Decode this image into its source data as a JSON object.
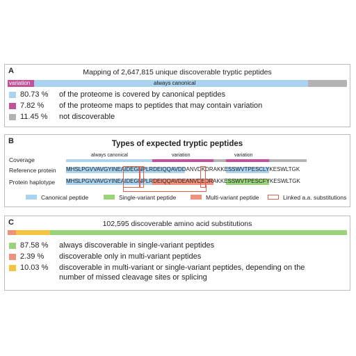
{
  "panelA": {
    "label": "A",
    "title": "Mapping of 2,647,815 unique discoverable tryptic peptides",
    "bar": {
      "variation_label": "variation",
      "canonical_label": "always canonical",
      "segments": [
        {
          "name": "variation",
          "fraction": 0.0782,
          "color": "#c2509a"
        },
        {
          "name": "canonical",
          "fraction": 0.8073,
          "color": "#a9d3ef"
        },
        {
          "name": "not",
          "fraction": 0.1145,
          "color": "#b2b2b2"
        }
      ]
    },
    "legend": [
      {
        "pct": "80.73 %",
        "text": "of the proteome is covered by canonical peptides",
        "color": "#a9d3ef"
      },
      {
        "pct": "7.82 %",
        "text": "of the proteome maps to peptides that may contain variation",
        "color": "#c2509a"
      },
      {
        "pct": "11.45 %",
        "text": "not discoverable",
        "color": "#b2b2b2"
      }
    ]
  },
  "panelB": {
    "label": "B",
    "title": "Types of expected tryptic peptides",
    "coverage_label": "Coverage",
    "coverage_always": "always canonical",
    "coverage_var1": "variation",
    "coverage_var2": "variation",
    "reference_label": "Reference protein",
    "haplotype_label": "Protein haplotype",
    "reference_seq": "MHSLPGVVAVGYINEAIDEGNPLRDEIQQAVDDANVDKDRAKKESSWVTPESCLYKESWLTGK",
    "haplotype_seq": "MHSLPGVVAVGYINEAIDEGNPLRDEIQQAVDEANVDEDRAKKESSWVTPESCFYKESWLTGK",
    "legend": [
      {
        "text": "Canonical peptide",
        "color": "#a9d3ef"
      },
      {
        "text": "Single-variant peptide",
        "color": "#9bd37a"
      },
      {
        "text": "Multi-variant peptide",
        "color": "#f0907e"
      },
      {
        "text": "Linked a.a. substitutions",
        "color": "#e06050"
      }
    ],
    "colors": {
      "canonical": "#a9d3ef",
      "single": "#9bd37a",
      "multi": "#f0907e",
      "variation": "#c2509a",
      "grey": "#b2b2b2"
    }
  },
  "panelC": {
    "label": "C",
    "title": "102,595 discoverable amino acid substitutions",
    "bar": [
      {
        "name": "multi",
        "fraction": 0.0239,
        "color": "#f0907e"
      },
      {
        "name": "depends",
        "fraction": 0.1003,
        "color": "#f5c342"
      },
      {
        "name": "single",
        "fraction": 0.8758,
        "color": "#9bd37a"
      }
    ],
    "legend": [
      {
        "pct": "87.58 %",
        "text": "always discoverable in single-variant peptides",
        "color": "#9bd37a"
      },
      {
        "pct": "2.39 %",
        "text": "discoverable only in multi-variant peptides",
        "color": "#f0907e"
      },
      {
        "pct": "10.03 %",
        "text": "discoverable in multi-variant or single-variant peptides, depending on the",
        "text2": "number of missed cleavage sites or splicing",
        "color": "#f5c342"
      }
    ]
  }
}
